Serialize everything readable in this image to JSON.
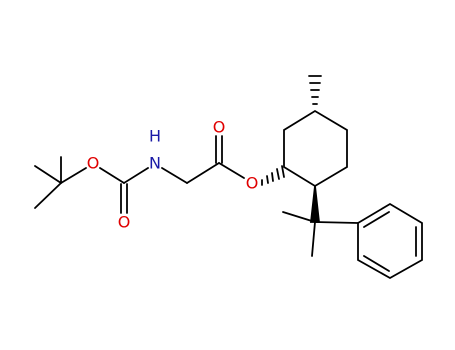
{
  "atoms": [
    {
      "label": "O"
    },
    {
      "label": "O"
    },
    {
      "label": "H"
    },
    {
      "label": "N"
    },
    {
      "label": "O"
    },
    {
      "label": "O"
    }
  ]
}
